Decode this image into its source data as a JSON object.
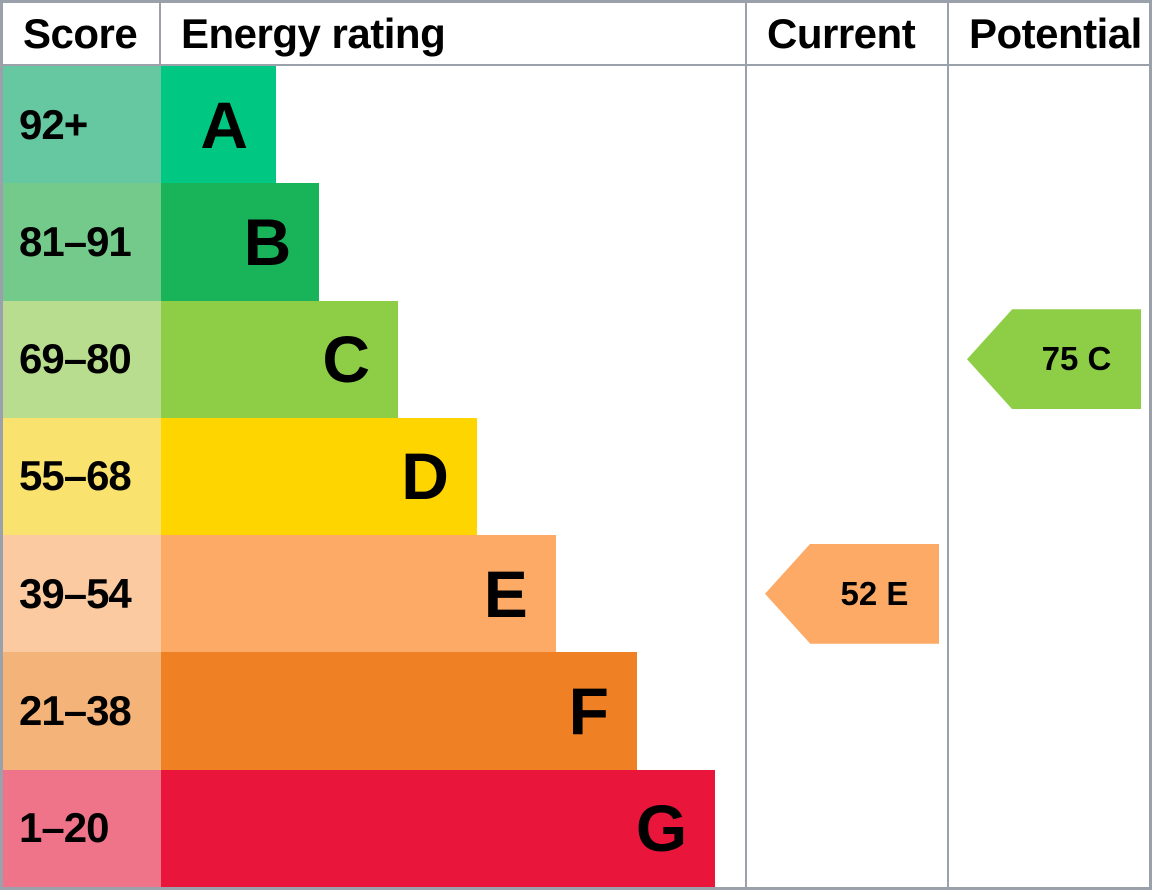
{
  "header": {
    "score": "Score",
    "energy_rating": "Energy rating",
    "current": "Current",
    "potential": "Potential"
  },
  "bands": [
    {
      "score": "92+",
      "letter": "A",
      "color": "#00c781",
      "score_color": "#65c8a1",
      "width": "19.7%"
    },
    {
      "score": "81–91",
      "letter": "B",
      "color": "#19b459",
      "score_color": "#74ca8b",
      "width": "27.1%"
    },
    {
      "score": "69–80",
      "letter": "C",
      "color": "#8dce46",
      "score_color": "#b9dd8e",
      "width": "40.6%"
    },
    {
      "score": "55–68",
      "letter": "D",
      "color": "#ffd500",
      "score_color": "#fae26e",
      "width": "54.1%"
    },
    {
      "score": "39–54",
      "letter": "E",
      "color": "#fcaa65",
      "score_color": "#fbcaa0",
      "width": "67.6%"
    },
    {
      "score": "21–38",
      "letter": "F",
      "color": "#ef8023",
      "score_color": "#f4b378",
      "width": "81.5%"
    },
    {
      "score": "1–20",
      "letter": "G",
      "color": "#e9153b",
      "score_color": "#ef7489",
      "width": "94.9%"
    }
  ],
  "markers": {
    "current": {
      "label": "52 E",
      "score": 52,
      "rating": "E",
      "color": "#fcaa65"
    },
    "potential": {
      "label": "75 C",
      "score": 75,
      "rating": "C",
      "color": "#8dce46"
    }
  },
  "colors": {
    "border": "#9aa1ab",
    "text": "#000000",
    "background": "#ffffff"
  },
  "chart_data": {
    "type": "bar",
    "title": "Energy rating",
    "columns": [
      "Score",
      "Energy rating",
      "Current",
      "Potential"
    ],
    "categories": [
      "A",
      "B",
      "C",
      "D",
      "E",
      "F",
      "G"
    ],
    "score_ranges": [
      "92+",
      "81-91",
      "69-80",
      "55-68",
      "39-54",
      "21-38",
      "1-20"
    ],
    "bar_lengths_pct_of_track": [
      19.7,
      27.1,
      40.6,
      54.1,
      67.6,
      81.5,
      94.9
    ],
    "band_colors": [
      "#00c781",
      "#19b459",
      "#8dce46",
      "#ffd500",
      "#fcaa65",
      "#ef8023",
      "#e9153b"
    ],
    "markers": [
      {
        "column": "Current",
        "score": 52,
        "rating": "E",
        "row_band": "E"
      },
      {
        "column": "Potential",
        "score": 75,
        "rating": "C",
        "row_band": "C"
      }
    ],
    "legend_position": "none",
    "grid": false
  }
}
